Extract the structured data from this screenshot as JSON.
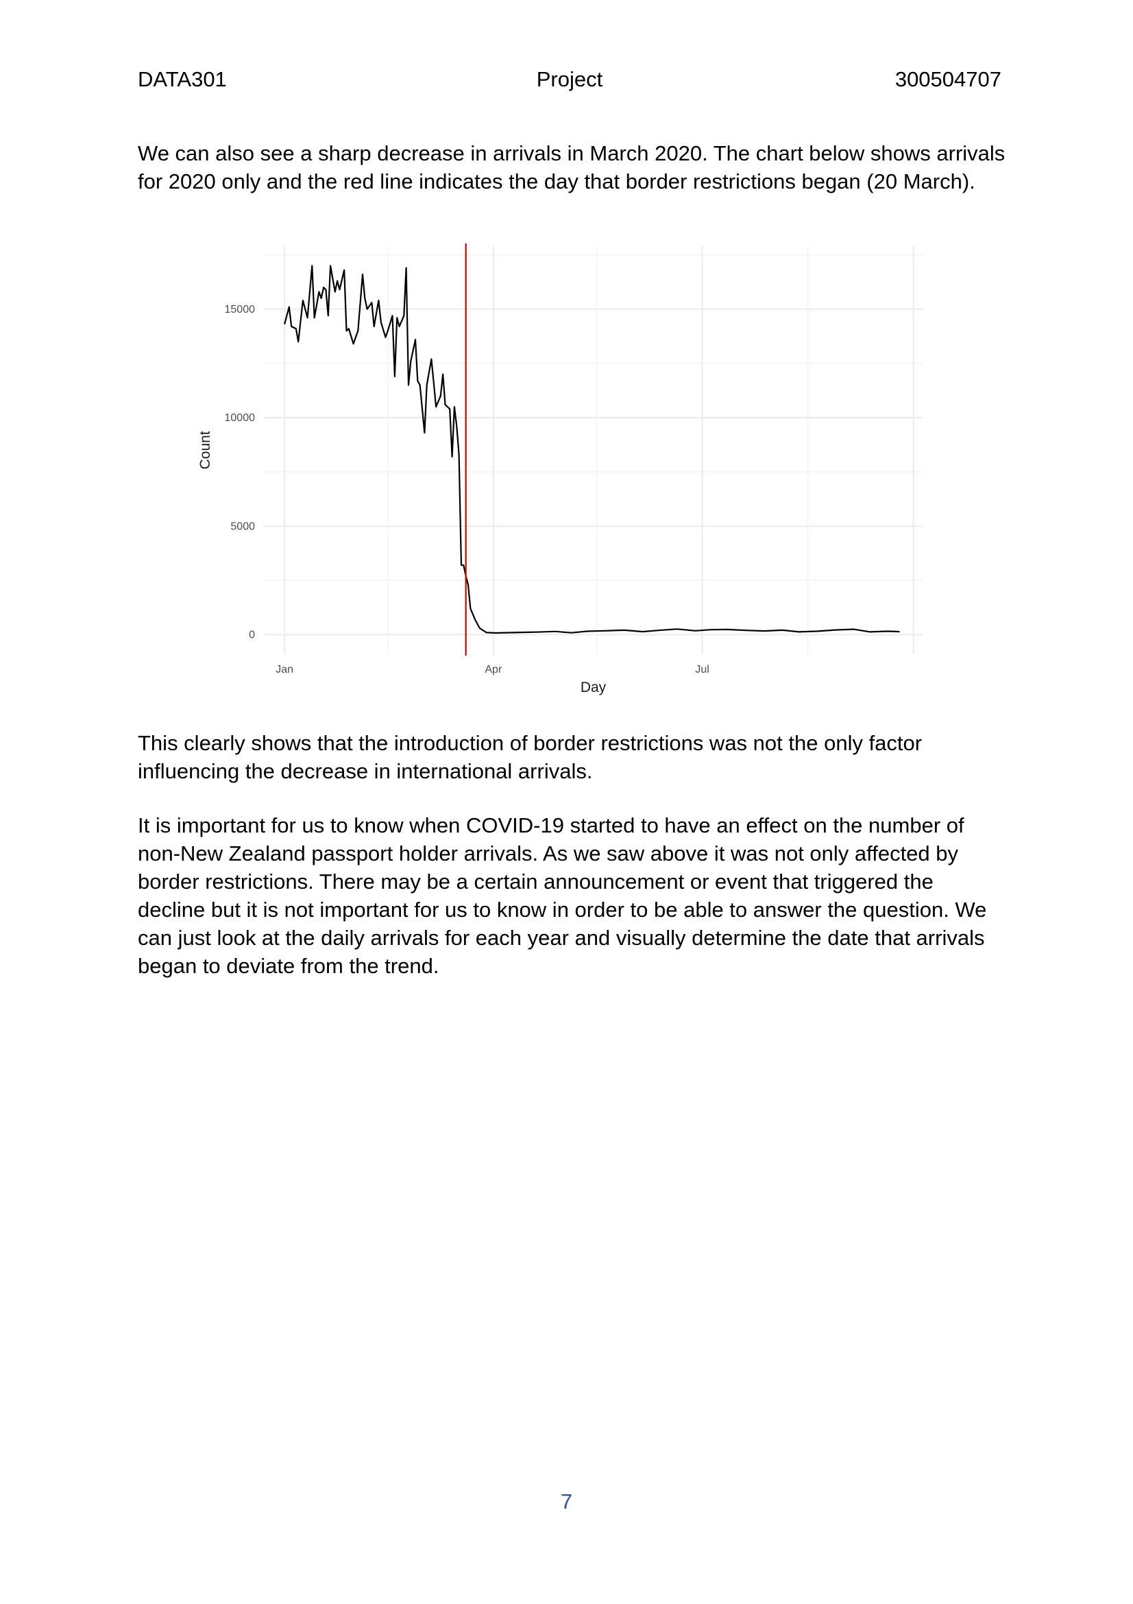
{
  "header": {
    "course": "DATA301",
    "title": "Project",
    "student_id": "300504707"
  },
  "intro_paragraph": {
    "lines": [
      "We can also see a sharp decrease in arrivals in March 2020. The chart below shows arrivals",
      "for 2020 only and the red line indicates the day that border restrictions began (20 March)."
    ]
  },
  "chart_data": {
    "type": "line",
    "xlabel": "Day",
    "ylabel": "Count",
    "x_tick_labels": [
      "Jan",
      "Apr",
      "Jul"
    ],
    "y_ticks": [
      0,
      5000,
      10000,
      15000
    ],
    "ylim": [
      -900,
      17900
    ],
    "xlim": [
      "2019-12-23",
      "2020-10-05"
    ],
    "grid": true,
    "legend": "none",
    "series_color": "#000000",
    "vline": {
      "date": "2020-03-20",
      "color": "#cc0000"
    },
    "series": [
      {
        "x": [
          "2020-01-01",
          "2020-01-03",
          "2020-01-04",
          "2020-01-06",
          "2020-01-07",
          "2020-01-09",
          "2020-01-11",
          "2020-01-13",
          "2020-01-14",
          "2020-01-16",
          "2020-01-17",
          "2020-01-18",
          "2020-01-19",
          "2020-01-20",
          "2020-01-21",
          "2020-01-23",
          "2020-01-24",
          "2020-01-25",
          "2020-01-27",
          "2020-01-28",
          "2020-01-29",
          "2020-01-31",
          "2020-02-01",
          "2020-02-02",
          "2020-02-04",
          "2020-02-05",
          "2020-02-06",
          "2020-02-08",
          "2020-02-09",
          "2020-02-11",
          "2020-02-12",
          "2020-02-14",
          "2020-02-15",
          "2020-02-17",
          "2020-02-18",
          "2020-02-19",
          "2020-02-20",
          "2020-02-22",
          "2020-02-23",
          "2020-02-24",
          "2020-02-25",
          "2020-02-27",
          "2020-02-28",
          "2020-02-29",
          "2020-03-02",
          "2020-03-03",
          "2020-03-05",
          "2020-03-06",
          "2020-03-07",
          "2020-03-09",
          "2020-03-10",
          "2020-03-11",
          "2020-03-13",
          "2020-03-14",
          "2020-03-15",
          "2020-03-16",
          "2020-03-17",
          "2020-03-18",
          "2020-03-19",
          "2020-03-20",
          "2020-03-21",
          "2020-03-22",
          "2020-03-24",
          "2020-03-26",
          "2020-03-29",
          "2020-04-02",
          "2020-04-10",
          "2020-04-20",
          "2020-04-28",
          "2020-05-05",
          "2020-05-12",
          "2020-05-20",
          "2020-05-28",
          "2020-06-05",
          "2020-06-12",
          "2020-06-20",
          "2020-06-28",
          "2020-07-05",
          "2020-07-12",
          "2020-07-20",
          "2020-07-28",
          "2020-08-05",
          "2020-08-12",
          "2020-08-20",
          "2020-08-28",
          "2020-09-05",
          "2020-09-12",
          "2020-09-20",
          "2020-09-25"
        ],
        "values": [
          14300,
          15100,
          14200,
          14100,
          13500,
          15400,
          14600,
          17000,
          14600,
          15800,
          15500,
          16000,
          15900,
          14700,
          17000,
          15800,
          16300,
          15900,
          16800,
          14000,
          14100,
          13400,
          13700,
          14000,
          16600,
          15500,
          15000,
          15300,
          14200,
          15400,
          14400,
          13700,
          14000,
          14700,
          11900,
          14600,
          14200,
          14700,
          16900,
          11500,
          12600,
          13600,
          11700,
          11500,
          9300,
          11500,
          12700,
          11600,
          10500,
          11000,
          12000,
          10600,
          10400,
          8200,
          10500,
          9600,
          8300,
          3200,
          3200,
          2700,
          2300,
          1200,
          700,
          300,
          100,
          80,
          100,
          120,
          150,
          90,
          160,
          180,
          210,
          140,
          200,
          260,
          180,
          230,
          240,
          200,
          170,
          210,
          130,
          160,
          220,
          250,
          130,
          160,
          140
        ]
      }
    ]
  },
  "after_chart_paragraph": {
    "lines": [
      "This clearly shows that the introduction of border restrictions was not the only factor",
      "influencing the decrease in international arrivals."
    ]
  },
  "final_paragraph": {
    "lines": [
      "It is important for us to know when COVID-19 started to have an effect on the number of",
      "non-New Zealand passport holder arrivals. As we saw above it was not only affected by",
      "border restrictions. There may be a certain announcement or event that triggered the",
      "decline but it is not important for us to know in order to be able to answer the question. We",
      "can just look at the daily arrivals for each year and visually determine the date that arrivals",
      "began to deviate from the trend."
    ]
  },
  "footer": {
    "page_number": "7"
  }
}
